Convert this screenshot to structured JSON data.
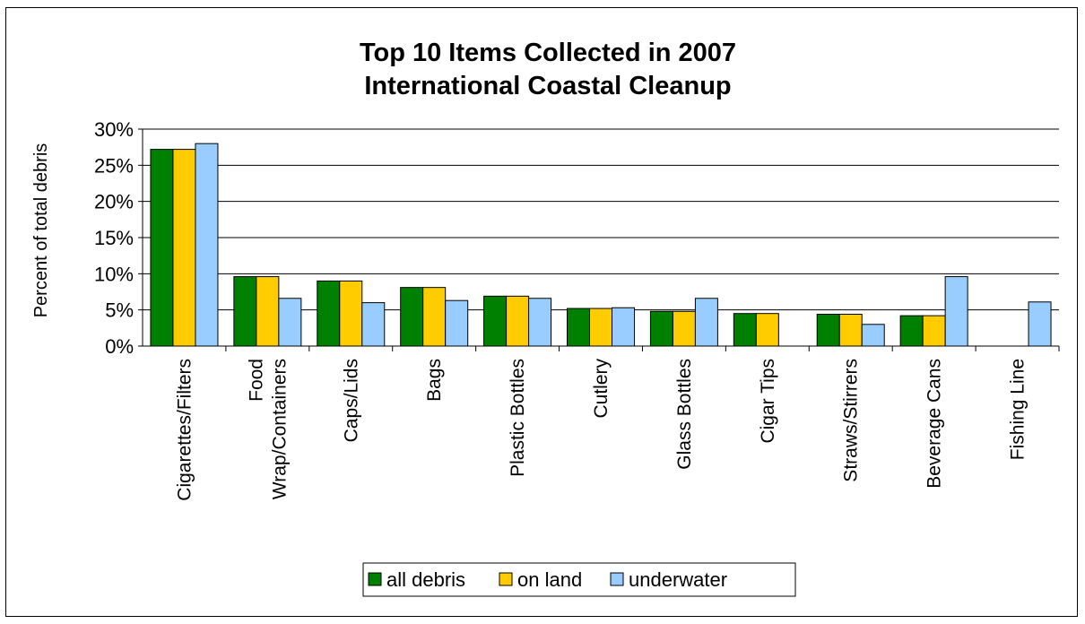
{
  "chart_data": {
    "type": "bar",
    "title": [
      "Top 10 Items Collected in 2007",
      "International Coastal Cleanup"
    ],
    "ylabel": "Percent of total debris",
    "ylim": [
      0,
      30
    ],
    "yticks": [
      "0%",
      "5%",
      "10%",
      "15%",
      "20%",
      "25%",
      "30%"
    ],
    "grid": true,
    "legend_position": "bottom",
    "categories": [
      [
        "Cigarettes/Filters"
      ],
      [
        "Food",
        "Wrap/Containers"
      ],
      [
        "Caps/Lids"
      ],
      [
        "Bags"
      ],
      [
        "Plastic Bottles"
      ],
      [
        "Cutlery"
      ],
      [
        "Glass Bottles"
      ],
      [
        "Cigar Tips"
      ],
      [
        "Straws/Stirrers"
      ],
      [
        "Beverage Cans"
      ],
      [
        "Fishing Line"
      ]
    ],
    "series": [
      {
        "name": "all debris",
        "color": "#008000",
        "values": [
          27.2,
          9.6,
          9.0,
          8.1,
          6.9,
          5.2,
          4.8,
          4.5,
          4.4,
          4.2,
          null
        ]
      },
      {
        "name": "on land",
        "color": "#FFCC00",
        "values": [
          27.2,
          9.6,
          9.0,
          8.1,
          6.9,
          5.2,
          4.8,
          4.5,
          4.4,
          4.2,
          null
        ]
      },
      {
        "name": "underwater",
        "color": "#99CCFF",
        "values": [
          28.0,
          6.6,
          6.0,
          6.3,
          6.6,
          5.3,
          6.6,
          null,
          3.0,
          9.6,
          6.1
        ]
      }
    ]
  }
}
